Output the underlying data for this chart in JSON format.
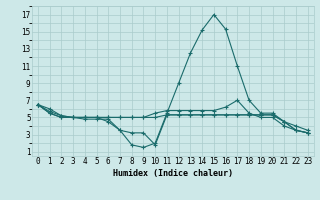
{
  "xlabel": "Humidex (Indice chaleur)",
  "bg_color": "#cde8e8",
  "grid_color": "#aacccc",
  "line_color": "#1a6b6b",
  "xlim": [
    -0.5,
    23.5
  ],
  "ylim": [
    0.5,
    18
  ],
  "xticks": [
    0,
    1,
    2,
    3,
    4,
    5,
    6,
    7,
    8,
    9,
    10,
    11,
    12,
    13,
    14,
    15,
    16,
    17,
    18,
    19,
    20,
    21,
    22,
    23
  ],
  "yticks": [
    1,
    3,
    5,
    7,
    9,
    11,
    13,
    15,
    17
  ],
  "lines": [
    {
      "x": [
        0,
        1,
        2,
        3,
        4,
        5,
        6,
        7,
        8,
        9,
        10,
        11,
        12,
        13,
        14,
        15,
        16,
        17,
        18,
        19,
        20,
        21,
        22,
        23
      ],
      "y": [
        6.5,
        6.0,
        5.2,
        5.0,
        5.0,
        5.0,
        4.5,
        3.5,
        1.8,
        1.5,
        2.0,
        5.5,
        9.0,
        12.5,
        15.2,
        17.0,
        15.3,
        11.0,
        7.0,
        5.5,
        5.5,
        4.5,
        3.5,
        3.2
      ]
    },
    {
      "x": [
        0,
        1,
        2,
        3,
        4,
        5,
        6,
        7,
        8,
        9,
        10,
        11,
        12,
        13,
        14,
        15,
        16,
        17,
        18,
        19,
        20,
        21,
        22,
        23
      ],
      "y": [
        6.5,
        5.7,
        5.2,
        5.0,
        4.8,
        4.8,
        4.8,
        3.5,
        3.2,
        3.2,
        1.8,
        5.3,
        5.3,
        5.3,
        5.3,
        5.3,
        5.3,
        5.3,
        5.3,
        5.3,
        5.3,
        4.5,
        3.5,
        3.2
      ]
    },
    {
      "x": [
        0,
        1,
        2,
        3,
        4,
        5,
        6,
        7,
        8,
        9,
        10,
        11,
        12,
        13,
        14,
        15,
        16,
        17,
        18,
        19,
        20,
        21,
        22,
        23
      ],
      "y": [
        6.5,
        5.5,
        5.0,
        5.0,
        5.0,
        5.0,
        5.0,
        5.0,
        5.0,
        5.0,
        5.0,
        5.3,
        5.3,
        5.3,
        5.3,
        5.3,
        5.3,
        5.3,
        5.3,
        5.3,
        5.3,
        4.5,
        4.0,
        3.5
      ]
    },
    {
      "x": [
        0,
        1,
        2,
        3,
        4,
        5,
        6,
        7,
        8,
        9,
        10,
        11,
        12,
        13,
        14,
        15,
        16,
        17,
        18,
        19,
        20,
        21,
        22,
        23
      ],
      "y": [
        6.5,
        5.5,
        5.0,
        5.0,
        5.0,
        5.0,
        5.0,
        5.0,
        5.0,
        5.0,
        5.5,
        5.8,
        5.8,
        5.8,
        5.8,
        5.8,
        6.2,
        7.0,
        5.5,
        5.0,
        5.0,
        4.0,
        3.5,
        3.2
      ]
    }
  ]
}
